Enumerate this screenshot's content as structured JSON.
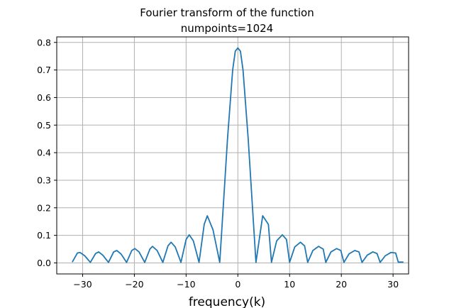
{
  "chart_data": {
    "type": "line",
    "title": "Fourier transform of the function",
    "subtitle": "numpoints=1024",
    "xlabel": "frequency(k)",
    "ylabel": "",
    "xlim": [
      -35,
      33
    ],
    "ylim": [
      -0.04,
      0.82
    ],
    "xticks": [
      -30,
      -20,
      -10,
      0,
      10,
      20,
      30
    ],
    "xtick_labels": [
      "−30",
      "−20",
      "−10",
      "0",
      "10",
      "20",
      "30"
    ],
    "yticks": [
      0.0,
      0.1,
      0.2,
      0.3,
      0.4,
      0.5,
      0.6,
      0.7,
      0.8
    ],
    "ytick_labels": [
      "0.0",
      "0.1",
      "0.2",
      "0.3",
      "0.4",
      "0.5",
      "0.6",
      "0.7",
      "0.8"
    ],
    "grid": true,
    "line_color": "#1f77b4",
    "series": [
      {
        "x": [
          -32,
          -31,
          -30.5,
          -29.6,
          -28.5,
          -27.5,
          -26.9,
          -26.1,
          -25.0,
          -24.0,
          -23.4,
          -22.6,
          -21.5,
          -20.5,
          -19.9,
          -19.1,
          -18.0,
          -17.0,
          -16.5,
          -15.6,
          -14.5,
          -13.5,
          -12.9,
          -12.1,
          -11.0,
          -10.0,
          -9.4,
          -8.6,
          -7.5,
          -6.5,
          -5.9,
          -4.8,
          -3.5,
          -3.0,
          -2.0,
          -1.0,
          -0.5,
          0,
          0.5,
          1.0,
          2.0,
          3.0,
          3.5,
          4.8,
          5.9,
          6.5,
          7.5,
          8.6,
          9.4,
          10.0,
          11.0,
          12.1,
          12.9,
          13.5,
          14.5,
          15.6,
          16.5,
          17.0,
          18.0,
          19.1,
          19.9,
          20.5,
          21.5,
          22.6,
          23.4,
          24.0,
          25.0,
          26.1,
          26.9,
          27.5,
          28.5,
          29.6,
          30.5,
          31,
          32
        ],
        "y": [
          0.003,
          0.036,
          0.038,
          0.026,
          0.002,
          0.034,
          0.04,
          0.028,
          0.002,
          0.04,
          0.045,
          0.033,
          0.002,
          0.045,
          0.052,
          0.04,
          0.002,
          0.05,
          0.06,
          0.045,
          0.002,
          0.062,
          0.075,
          0.058,
          0.002,
          0.085,
          0.102,
          0.08,
          0.002,
          0.14,
          0.171,
          0.12,
          0.002,
          0.15,
          0.45,
          0.7,
          0.768,
          0.78,
          0.768,
          0.7,
          0.45,
          0.15,
          0.002,
          0.171,
          0.14,
          0.002,
          0.08,
          0.102,
          0.085,
          0.002,
          0.058,
          0.075,
          0.062,
          0.002,
          0.045,
          0.06,
          0.05,
          0.002,
          0.04,
          0.052,
          0.045,
          0.002,
          0.033,
          0.045,
          0.04,
          0.002,
          0.028,
          0.04,
          0.034,
          0.002,
          0.026,
          0.038,
          0.036,
          0.003,
          0.003
        ]
      }
    ]
  }
}
